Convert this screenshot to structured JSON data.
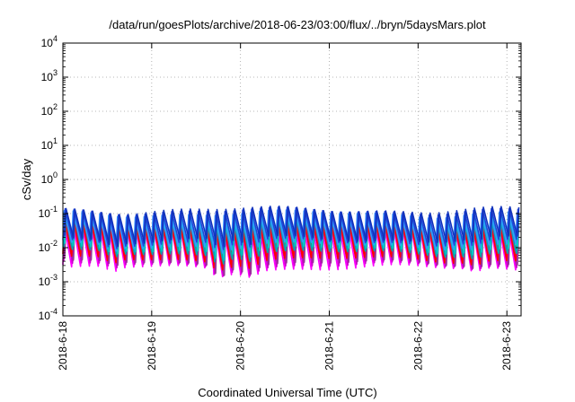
{
  "chart_data": {
    "type": "line",
    "title": "/data/run/goesPlots/archive/2018-06-23/03:00/flux/../bryn/5daysMars.plot",
    "xlabel": "Coordinated Universal Time (UTC)",
    "ylabel": "cSv/day",
    "yscale": "log",
    "ylim": [
      0.0001,
      10000
    ],
    "yticks": [
      {
        "value": 0.0001,
        "base": "10",
        "exp": "-4"
      },
      {
        "value": 0.001,
        "base": "10",
        "exp": "-3"
      },
      {
        "value": 0.01,
        "base": "10",
        "exp": "-2"
      },
      {
        "value": 0.1,
        "base": "10",
        "exp": "-1"
      },
      {
        "value": 1,
        "base": "10",
        "exp": "0"
      },
      {
        "value": 10,
        "base": "10",
        "exp": "1"
      },
      {
        "value": 100,
        "base": "10",
        "exp": "2"
      },
      {
        "value": 1000,
        "base": "10",
        "exp": "3"
      },
      {
        "value": 10000,
        "base": "10",
        "exp": "4"
      }
    ],
    "xlim_days": [
      0,
      5.16
    ],
    "xticks": [
      {
        "day": 0,
        "label": "2018-6-18"
      },
      {
        "day": 1,
        "label": "2018-6-19"
      },
      {
        "day": 2,
        "label": "2018-6-20"
      },
      {
        "day": 3,
        "label": "2018-6-21"
      },
      {
        "day": 4,
        "label": "2018-6-22"
      },
      {
        "day": 5,
        "label": "2018-6-23"
      }
    ],
    "grid": true,
    "sawtooth_period_days": 0.1,
    "series": [
      {
        "color": "#ff00ff",
        "peak": 0.045,
        "trough": 0.0025
      },
      {
        "color": "#cc00cc",
        "peak": 0.05,
        "trough": 0.003
      },
      {
        "color": "#993399",
        "peak": 0.055,
        "trough": 0.0035
      },
      {
        "color": "#ff0000",
        "peak": 0.06,
        "trough": 0.0045
      },
      {
        "color": "#00aaaa",
        "peak": 0.075,
        "trough": 0.007
      },
      {
        "color": "#00cccc",
        "peak": 0.085,
        "trough": 0.009
      },
      {
        "color": "#3399ff",
        "peak": 0.1,
        "trough": 0.012
      },
      {
        "color": "#2244dd",
        "peak": 0.12,
        "trough": 0.015
      },
      {
        "color": "#1133bb",
        "peak": 0.13,
        "trough": 0.018
      }
    ],
    "dips": [
      {
        "day": 1.78,
        "factor": 0.55
      },
      {
        "day": 2.08,
        "factor": 0.6
      },
      {
        "day": 0.55,
        "factor": 0.75
      },
      {
        "day": 4.6,
        "factor": 0.75
      }
    ]
  }
}
